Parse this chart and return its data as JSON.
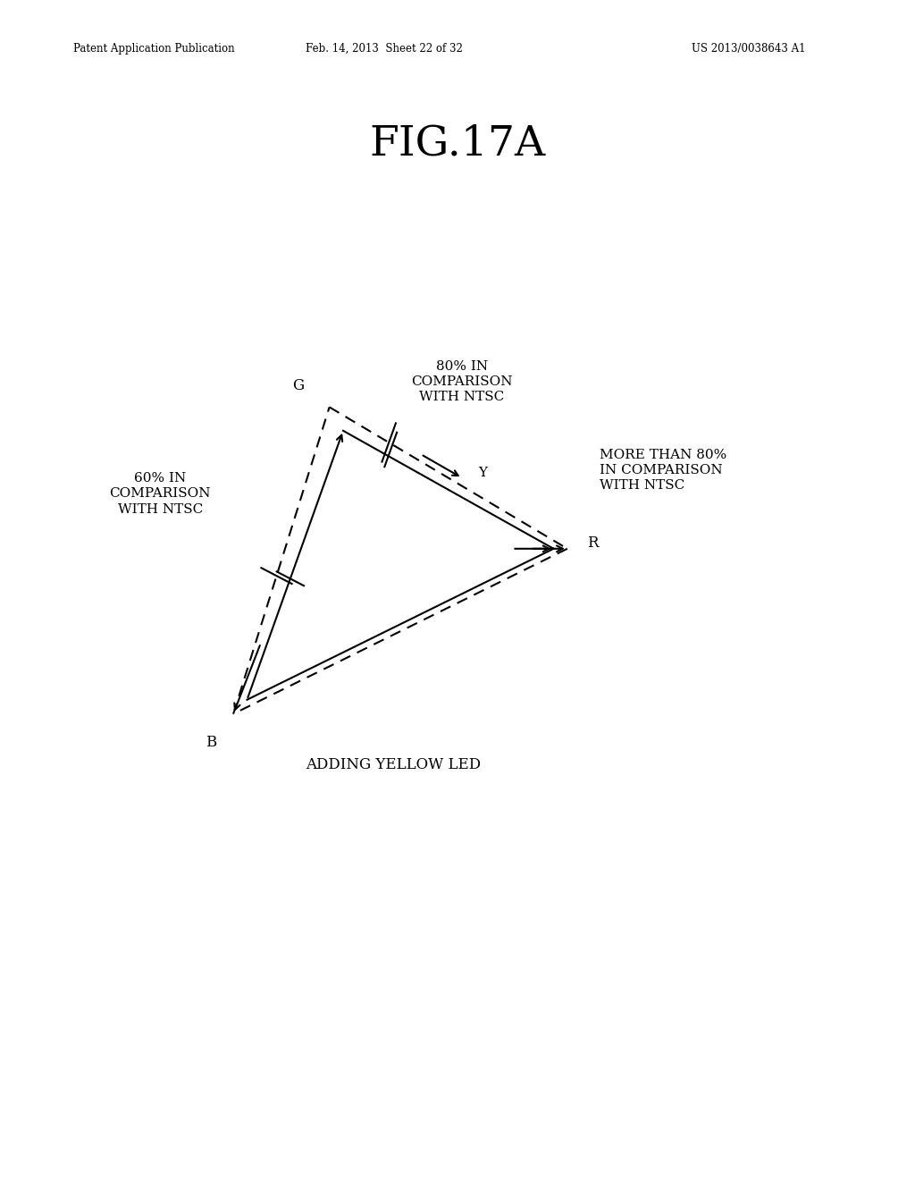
{
  "title": "FIG.17A",
  "header_left": "Patent Application Publication",
  "header_center": "Feb. 14, 2013  Sheet 22 of 32",
  "header_right": "US 2013/0038643 A1",
  "background_color": "#ffffff",
  "text_color": "#000000",
  "G": [
    0.36,
    0.655
  ],
  "R": [
    0.62,
    0.535
  ],
  "B": [
    0.255,
    0.395
  ],
  "Y": [
    0.505,
    0.595
  ],
  "inner_G": [
    0.375,
    0.635
  ],
  "inner_R": [
    0.605,
    0.535
  ],
  "inner_B": [
    0.27,
    0.407
  ],
  "label_80_text": "80% IN\nCOMPARISON\nWITH NTSC",
  "label_more80_text": "MORE THAN 80%\nIN COMPARISON\nWITH NTSC",
  "label_60_text": "60% IN\nCOMPARISON\nWITH NTSC",
  "label_adding_text": "ADDING YELLOW LED",
  "G_label": "G",
  "R_label": "R",
  "B_label": "B",
  "Y_label": "Y"
}
